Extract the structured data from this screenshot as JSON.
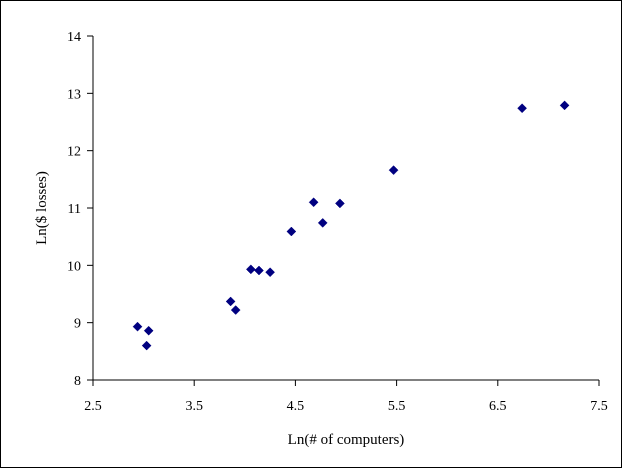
{
  "chart_data": {
    "type": "scatter",
    "title": "",
    "xlabel": "Ln(# of computers)",
    "ylabel": "Ln($ losses)",
    "xlim": [
      2.5,
      7.5
    ],
    "ylim": [
      8,
      14
    ],
    "x_ticks": [
      2.5,
      3.5,
      4.5,
      5.5,
      6.5,
      7.5
    ],
    "y_ticks": [
      8,
      9,
      10,
      11,
      12,
      13,
      14
    ],
    "x_tick_labels": [
      "2.5",
      "3.5",
      "4.5",
      "5.5",
      "6.5",
      "7.5"
    ],
    "y_tick_labels": [
      "8",
      "9",
      "10",
      "11",
      "12",
      "13",
      "14"
    ],
    "grid": false,
    "legend": "none",
    "marker": "diamond",
    "marker_color": "#000080",
    "series": [
      {
        "points": [
          {
            "x": 2.94,
            "y": 8.93
          },
          {
            "x": 3.03,
            "y": 8.6
          },
          {
            "x": 3.05,
            "y": 8.86
          },
          {
            "x": 3.86,
            "y": 9.37
          },
          {
            "x": 3.91,
            "y": 9.22
          },
          {
            "x": 4.06,
            "y": 9.93
          },
          {
            "x": 4.14,
            "y": 9.91
          },
          {
            "x": 4.25,
            "y": 9.88
          },
          {
            "x": 4.46,
            "y": 10.59
          },
          {
            "x": 4.68,
            "y": 11.1
          },
          {
            "x": 4.77,
            "y": 10.74
          },
          {
            "x": 4.94,
            "y": 11.08
          },
          {
            "x": 5.47,
            "y": 11.66
          },
          {
            "x": 6.74,
            "y": 12.74
          },
          {
            "x": 7.16,
            "y": 12.79
          }
        ]
      }
    ]
  }
}
